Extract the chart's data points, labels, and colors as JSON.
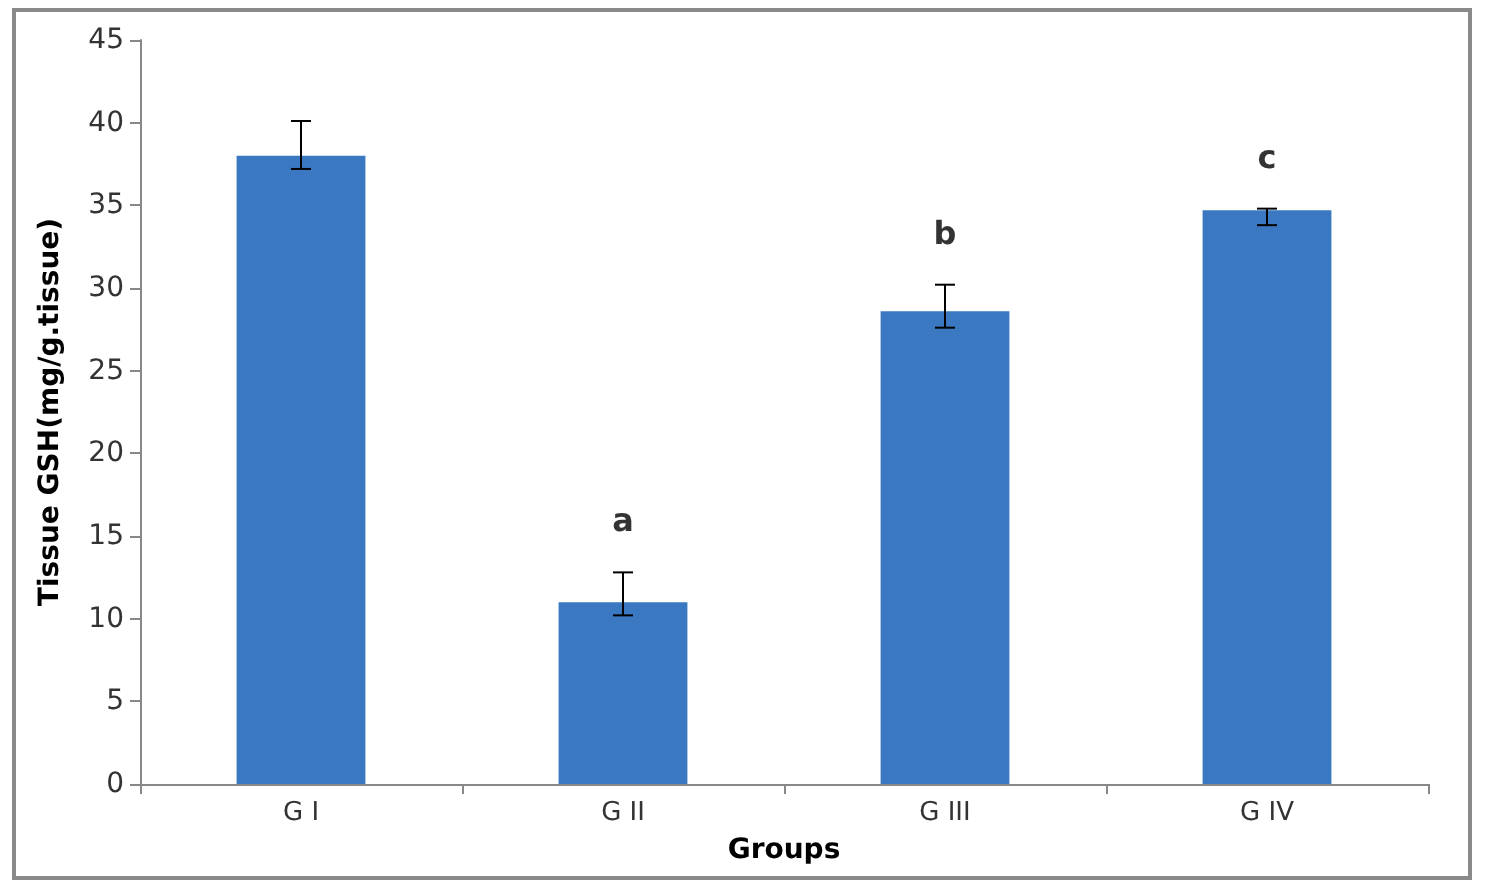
{
  "chart_data": {
    "type": "bar",
    "xlabel": "Groups",
    "ylabel": "Tissue GSH(mg/g.tissue)",
    "categories": [
      "G I",
      "G II",
      "G III",
      "G IV"
    ],
    "values": [
      38.0,
      11.0,
      28.6,
      34.7
    ],
    "errors": [
      [
        37.2,
        40.1
      ],
      [
        10.2,
        12.8
      ],
      [
        27.6,
        30.2
      ],
      [
        33.8,
        34.8
      ]
    ],
    "color": "#3a78c2",
    "ylim": [
      0,
      45
    ],
    "yticks": [
      0,
      5,
      10,
      15,
      20,
      25,
      30,
      35,
      40,
      45
    ],
    "grid": false,
    "annotations": [
      "a",
      "b",
      "c"
    ]
  }
}
